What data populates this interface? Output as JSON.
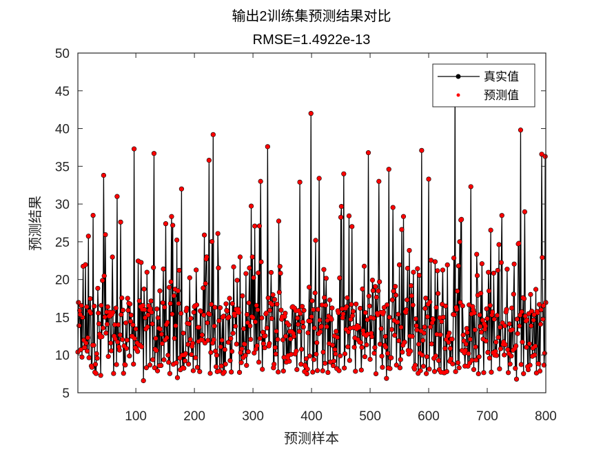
{
  "chart_data": {
    "type": "line",
    "title": "输出2训练集预测结果对比",
    "subtitle": "RMSE=1.4922e-13",
    "xlabel": "预测样本",
    "ylabel": "预测结果",
    "xlim": [
      1,
      800
    ],
    "ylim": [
      5,
      50
    ],
    "xticks": [
      100,
      200,
      300,
      400,
      500,
      600,
      700,
      800
    ],
    "yticks": [
      5,
      10,
      15,
      20,
      25,
      30,
      35,
      40,
      45,
      50
    ],
    "grid": false,
    "legend": {
      "placement": "top-right",
      "entries": [
        "真实值",
        "预测值"
      ]
    },
    "n_samples": 800,
    "series": [
      {
        "name": "真实值",
        "color": "#000000",
        "style": "line-with-dots"
      },
      {
        "name": "预测值",
        "color": "#ff0000",
        "style": "dots"
      }
    ],
    "notable_points": [
      [
        27,
        28.5
      ],
      [
        45,
        33.8
      ],
      [
        68,
        31
      ],
      [
        97,
        37.3
      ],
      [
        131,
        36.7
      ],
      [
        178,
        32
      ],
      [
        225,
        35.8
      ],
      [
        232,
        39.2
      ],
      [
        313,
        33
      ],
      [
        325,
        37.6
      ],
      [
        380,
        32.9
      ],
      [
        399,
        42
      ],
      [
        413,
        33.4
      ],
      [
        455,
        34
      ],
      [
        497,
        36.8
      ],
      [
        515,
        33
      ],
      [
        532,
        34.6
      ],
      [
        588,
        37.1
      ],
      [
        600,
        33.3
      ],
      [
        645,
        45
      ],
      [
        672,
        32.3
      ],
      [
        757,
        39.8
      ],
      [
        793,
        36.6
      ],
      [
        799,
        36.3
      ],
      [
        113,
        6.6
      ],
      [
        171,
        7
      ],
      [
        528,
        6.9
      ],
      [
        750,
        6.8
      ],
      [
        40,
        7.3
      ]
    ],
    "value_distribution": {
      "typical_min": 7,
      "typical_max": 22,
      "median": 13
    }
  }
}
